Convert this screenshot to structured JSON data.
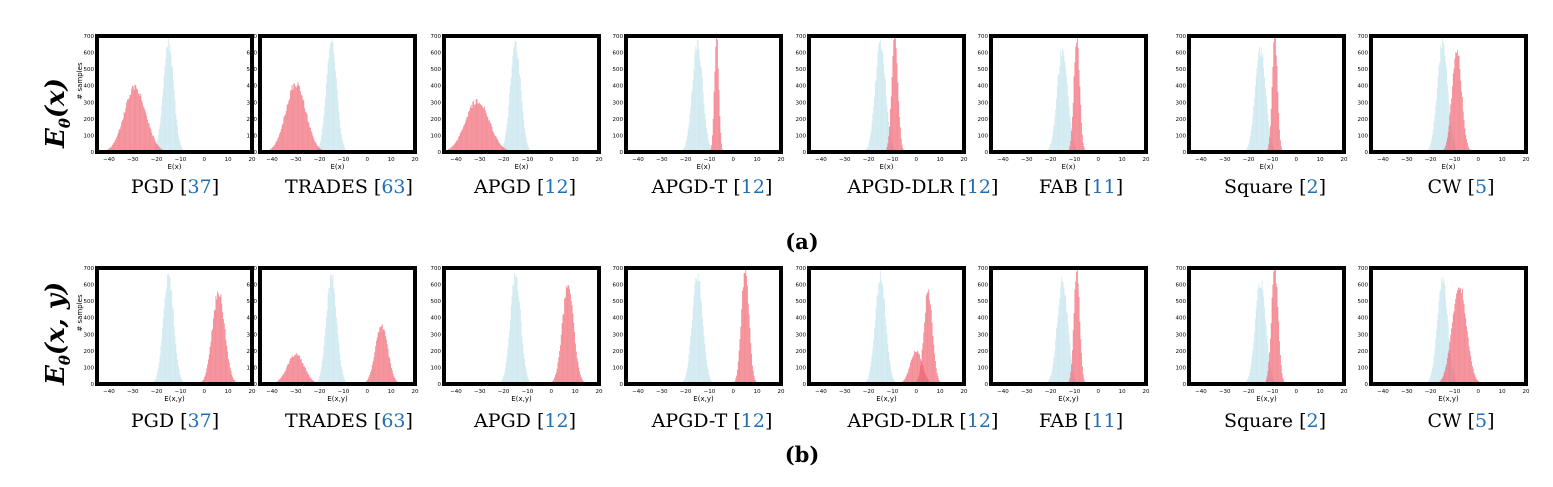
{
  "rows": [
    {
      "row_label": "E_θ(x)",
      "xlabel": "E(x)",
      "sublabel": "(a)"
    },
    {
      "row_label": "E_θ(x, y)",
      "xlabel": "E(x,y)",
      "sublabel": "(b)"
    }
  ],
  "ylabel": "# samples",
  "colors": {
    "clean": "#add8e6",
    "adversarial": "#f0606e",
    "frame": "#000000",
    "ref": "#1f6fb5"
  },
  "chart_data": [
    {
      "type": "histogram",
      "row": "a",
      "caption": "PGD",
      "ref": "37",
      "xlabel": "E(x)",
      "ylabel": "# samples",
      "xlim": [
        -45,
        20
      ],
      "ylim": [
        0,
        700
      ],
      "xticks": [
        -40,
        -30,
        -20,
        -10,
        0,
        10,
        20
      ],
      "yticks": [
        0,
        100,
        200,
        300,
        400,
        500,
        600,
        700
      ],
      "series": [
        {
          "color": "clean",
          "mean": -15,
          "sd": 2.2,
          "peak": 650
        },
        {
          "color": "adversarial",
          "mean": -29,
          "sd": 4.5,
          "peak": 390
        }
      ]
    },
    {
      "type": "histogram",
      "row": "a",
      "caption": "TRADES",
      "ref": "63",
      "xlabel": "E(x)",
      "ylabel": "",
      "xlim": [
        -45,
        20
      ],
      "ylim": [
        0,
        700
      ],
      "xticks": [
        -40,
        -30,
        -20,
        -10,
        0,
        10,
        20
      ],
      "yticks": [
        0,
        100,
        200,
        300,
        400,
        500,
        600,
        700
      ],
      "series": [
        {
          "color": "clean",
          "mean": -15,
          "sd": 2.2,
          "peak": 650
        },
        {
          "color": "adversarial",
          "mean": -30,
          "sd": 4.2,
          "peak": 410
        }
      ]
    },
    {
      "type": "histogram",
      "row": "a",
      "caption": "APGD",
      "ref": "12",
      "xlabel": "E(x)",
      "ylabel": "",
      "xlim": [
        -45,
        20
      ],
      "ylim": [
        0,
        700
      ],
      "xticks": [
        -40,
        -30,
        -20,
        -10,
        0,
        10,
        20
      ],
      "yticks": [
        0,
        100,
        200,
        300,
        400,
        500,
        600,
        700
      ],
      "series": [
        {
          "color": "clean",
          "mean": -15,
          "sd": 2.2,
          "peak": 650
        },
        {
          "color": "adversarial",
          "mean": -31,
          "sd": 5,
          "peak": 310
        }
      ]
    },
    {
      "type": "histogram",
      "row": "a",
      "caption": "APGD-T",
      "ref": "12",
      "xlabel": "E(x)",
      "ylabel": "",
      "xlim": [
        -45,
        20
      ],
      "ylim": [
        0,
        700
      ],
      "xticks": [
        -40,
        -30,
        -20,
        -10,
        0,
        10,
        20
      ],
      "yticks": [
        0,
        100,
        200,
        300,
        400,
        500,
        600,
        700
      ],
      "series": [
        {
          "color": "clean",
          "mean": -15,
          "sd": 2.2,
          "peak": 650
        },
        {
          "color": "adversarial",
          "mean": -7,
          "sd": 0.9,
          "peak": 700
        }
      ]
    },
    {
      "type": "histogram",
      "row": "a",
      "caption": "APGD-DLR",
      "ref": "12",
      "xlabel": "E(x)",
      "ylabel": "",
      "xlim": [
        -45,
        20
      ],
      "ylim": [
        0,
        700
      ],
      "xticks": [
        -40,
        -30,
        -20,
        -10,
        0,
        10,
        20
      ],
      "yticks": [
        0,
        100,
        200,
        300,
        400,
        500,
        600,
        700
      ],
      "series": [
        {
          "color": "clean",
          "mean": -15,
          "sd": 2.2,
          "peak": 650
        },
        {
          "color": "adversarial",
          "mean": -9,
          "sd": 1.3,
          "peak": 700
        }
      ]
    },
    {
      "type": "histogram",
      "row": "a",
      "caption": "FAB",
      "ref": "11",
      "xlabel": "E(x)",
      "ylabel": "",
      "xlim": [
        -45,
        20
      ],
      "ylim": [
        0,
        700
      ],
      "xticks": [
        -40,
        -30,
        -20,
        -10,
        0,
        10,
        20
      ],
      "yticks": [
        0,
        100,
        200,
        300,
        400,
        500,
        600,
        700
      ],
      "series": [
        {
          "color": "clean",
          "mean": -15,
          "sd": 2.2,
          "peak": 620
        },
        {
          "color": "adversarial",
          "mean": -9,
          "sd": 1.2,
          "peak": 700
        }
      ]
    },
    {
      "type": "histogram",
      "row": "a",
      "caption": "Square",
      "ref": "2",
      "xlabel": "E(x)",
      "ylabel": "",
      "xlim": [
        -45,
        20
      ],
      "ylim": [
        0,
        700
      ],
      "xticks": [
        -40,
        -30,
        -20,
        -10,
        0,
        10,
        20
      ],
      "yticks": [
        0,
        100,
        200,
        300,
        400,
        500,
        600,
        700
      ],
      "series": [
        {
          "color": "clean",
          "mean": -15,
          "sd": 2.2,
          "peak": 620
        },
        {
          "color": "adversarial",
          "mean": -9,
          "sd": 1.1,
          "peak": 700
        }
      ]
    },
    {
      "type": "histogram",
      "row": "a",
      "caption": "CW",
      "ref": "5",
      "xlabel": "E(x)",
      "ylabel": "",
      "xlim": [
        -45,
        20
      ],
      "ylim": [
        0,
        700
      ],
      "xticks": [
        -40,
        -30,
        -20,
        -10,
        0,
        10,
        20
      ],
      "yticks": [
        0,
        100,
        200,
        300,
        400,
        500,
        600,
        700
      ],
      "series": [
        {
          "color": "clean",
          "mean": -15,
          "sd": 2.2,
          "peak": 650
        },
        {
          "color": "adversarial",
          "mean": -9,
          "sd": 2.0,
          "peak": 620
        }
      ]
    },
    {
      "type": "histogram",
      "row": "b",
      "caption": "PGD",
      "ref": "37",
      "xlabel": "E(x,y)",
      "ylabel": "# samples",
      "xlim": [
        -45,
        20
      ],
      "ylim": [
        0,
        700
      ],
      "xticks": [
        -40,
        -30,
        -20,
        -10,
        0,
        10,
        20
      ],
      "yticks": [
        0,
        100,
        200,
        300,
        400,
        500,
        600,
        700
      ],
      "series": [
        {
          "color": "clean",
          "mean": -15,
          "sd": 2.2,
          "peak": 650
        },
        {
          "color": "adversarial",
          "mean": 6,
          "sd": 2.6,
          "peak": 560
        }
      ]
    },
    {
      "type": "histogram",
      "row": "b",
      "caption": "TRADES",
      "ref": "63",
      "xlabel": "E(x,y)",
      "ylabel": "",
      "xlim": [
        -45,
        20
      ],
      "ylim": [
        0,
        700
      ],
      "xticks": [
        -40,
        -30,
        -20,
        -10,
        0,
        10,
        20
      ],
      "yticks": [
        0,
        100,
        200,
        300,
        400,
        500,
        600,
        700
      ],
      "series": [
        {
          "color": "clean",
          "mean": -15,
          "sd": 2.2,
          "peak": 650
        },
        {
          "color": "adversarial",
          "mean": 6,
          "sd": 2.6,
          "peak": 350
        },
        {
          "color": "adversarial",
          "mean": -30,
          "sd": 3.5,
          "peak": 180
        }
      ]
    },
    {
      "type": "histogram",
      "row": "b",
      "caption": "APGD",
      "ref": "12",
      "xlabel": "E(x,y)",
      "ylabel": "",
      "xlim": [
        -45,
        20
      ],
      "ylim": [
        0,
        700
      ],
      "xticks": [
        -40,
        -30,
        -20,
        -10,
        0,
        10,
        20
      ],
      "yticks": [
        0,
        100,
        200,
        300,
        400,
        500,
        600,
        700
      ],
      "series": [
        {
          "color": "clean",
          "mean": -15,
          "sd": 2.2,
          "peak": 650
        },
        {
          "color": "adversarial",
          "mean": 7,
          "sd": 2.4,
          "peak": 590
        }
      ]
    },
    {
      "type": "histogram",
      "row": "b",
      "caption": "APGD-T",
      "ref": "12",
      "xlabel": "E(x,y)",
      "ylabel": "",
      "xlim": [
        -45,
        20
      ],
      "ylim": [
        0,
        700
      ],
      "xticks": [
        -40,
        -30,
        -20,
        -10,
        0,
        10,
        20
      ],
      "yticks": [
        0,
        100,
        200,
        300,
        400,
        500,
        600,
        700
      ],
      "series": [
        {
          "color": "clean",
          "mean": -15,
          "sd": 2.2,
          "peak": 650
        },
        {
          "color": "adversarial",
          "mean": 5,
          "sd": 1.6,
          "peak": 700
        }
      ]
    },
    {
      "type": "histogram",
      "row": "b",
      "caption": "APGD-DLR",
      "ref": "12",
      "xlabel": "E(x,y)",
      "ylabel": "",
      "xlim": [
        -45,
        20
      ],
      "ylim": [
        0,
        700
      ],
      "xticks": [
        -40,
        -30,
        -20,
        -10,
        0,
        10,
        20
      ],
      "yticks": [
        0,
        100,
        200,
        300,
        400,
        500,
        600,
        700
      ],
      "series": [
        {
          "color": "clean",
          "mean": -15,
          "sd": 2.2,
          "peak": 650
        },
        {
          "color": "adversarial",
          "mean": 5,
          "sd": 1.8,
          "peak": 560
        },
        {
          "color": "adversarial",
          "mean": 0,
          "sd": 2.5,
          "peak": 200
        }
      ]
    },
    {
      "type": "histogram",
      "row": "b",
      "caption": "FAB",
      "ref": "11",
      "xlabel": "E(x,y)",
      "ylabel": "",
      "xlim": [
        -45,
        20
      ],
      "ylim": [
        0,
        700
      ],
      "xticks": [
        -40,
        -30,
        -20,
        -10,
        0,
        10,
        20
      ],
      "yticks": [
        0,
        100,
        200,
        300,
        400,
        500,
        600,
        700
      ],
      "series": [
        {
          "color": "clean",
          "mean": -15,
          "sd": 2.2,
          "peak": 620
        },
        {
          "color": "adversarial",
          "mean": -9,
          "sd": 1.2,
          "peak": 700
        }
      ]
    },
    {
      "type": "histogram",
      "row": "b",
      "caption": "Square",
      "ref": "2",
      "xlabel": "E(x,y)",
      "ylabel": "",
      "xlim": [
        -45,
        20
      ],
      "ylim": [
        0,
        700
      ],
      "xticks": [
        -40,
        -30,
        -20,
        -10,
        0,
        10,
        20
      ],
      "yticks": [
        0,
        100,
        200,
        300,
        400,
        500,
        600,
        700
      ],
      "series": [
        {
          "color": "clean",
          "mean": -15,
          "sd": 2.2,
          "peak": 620
        },
        {
          "color": "adversarial",
          "mean": -9,
          "sd": 1.4,
          "peak": 700
        }
      ]
    },
    {
      "type": "histogram",
      "row": "b",
      "caption": "CW",
      "ref": "5",
      "xlabel": "E(x,y)",
      "ylabel": "",
      "xlim": [
        -45,
        20
      ],
      "ylim": [
        0,
        700
      ],
      "xticks": [
        -40,
        -30,
        -20,
        -10,
        0,
        10,
        20
      ],
      "yticks": [
        0,
        100,
        200,
        300,
        400,
        500,
        600,
        700
      ],
      "series": [
        {
          "color": "clean",
          "mean": -15,
          "sd": 2.2,
          "peak": 620
        },
        {
          "color": "adversarial",
          "mean": -8,
          "sd": 3.0,
          "peak": 600
        }
      ]
    }
  ]
}
